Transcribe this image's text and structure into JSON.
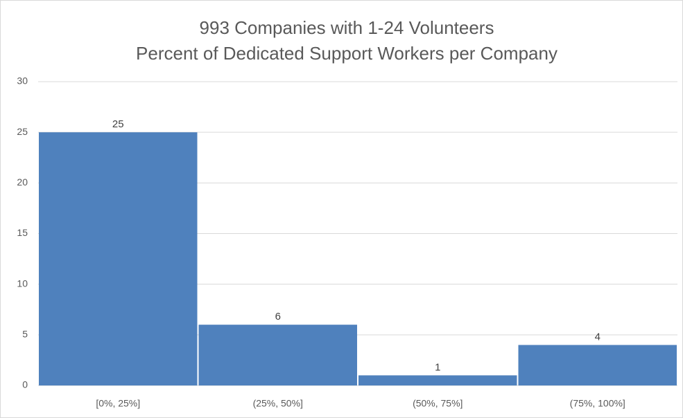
{
  "chart_data": {
    "type": "bar",
    "title": "993 Companies with 1-24 Volunteers",
    "subtitle": "Percent of Dedicated Support Workers per Company",
    "categories": [
      "[0%, 25%]",
      "(25%, 50%]",
      "(50%, 75%]",
      "(75%, 100%]"
    ],
    "values": [
      25,
      6,
      1,
      4
    ],
    "color": "#4f81bd",
    "ylim": [
      0,
      30
    ],
    "yticks": [
      0,
      5,
      10,
      15,
      20,
      25,
      30
    ],
    "grid": true
  }
}
